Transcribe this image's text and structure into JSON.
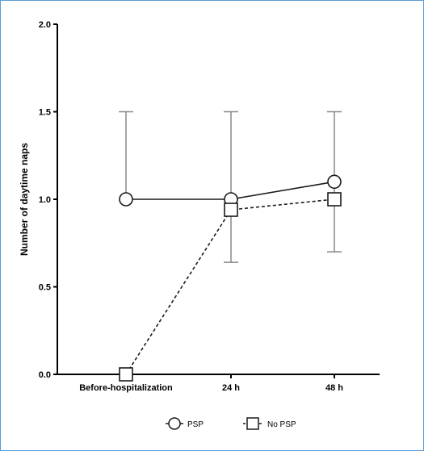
{
  "chart_data": {
    "type": "line",
    "categories": [
      "Before-hospitalization",
      "24 h",
      "48 h"
    ],
    "ylabel": "Number of daytime naps",
    "xlabel": "",
    "ylim": [
      0,
      2.0
    ],
    "yticks": [
      "0.0",
      "0.5",
      "1.0",
      "1.5",
      "2.0"
    ],
    "grid": false,
    "legend_position": "bottom",
    "series": [
      {
        "name": "PSP",
        "marker": "circle",
        "line_style": "solid",
        "color": "#1a1a1a",
        "values": [
          1.0,
          1.0,
          1.1
        ],
        "error_low": [
          null,
          0.64,
          0.7
        ],
        "error_high": [
          1.5,
          1.5,
          1.5
        ]
      },
      {
        "name": "No PSP",
        "marker": "square",
        "line_style": "dashed",
        "color": "#1a1a1a",
        "values": [
          0.0,
          0.94,
          1.0
        ]
      }
    ],
    "colors": {
      "axis": "#000000",
      "errorbar": "#888888",
      "frame": "#5b9bd5"
    }
  }
}
